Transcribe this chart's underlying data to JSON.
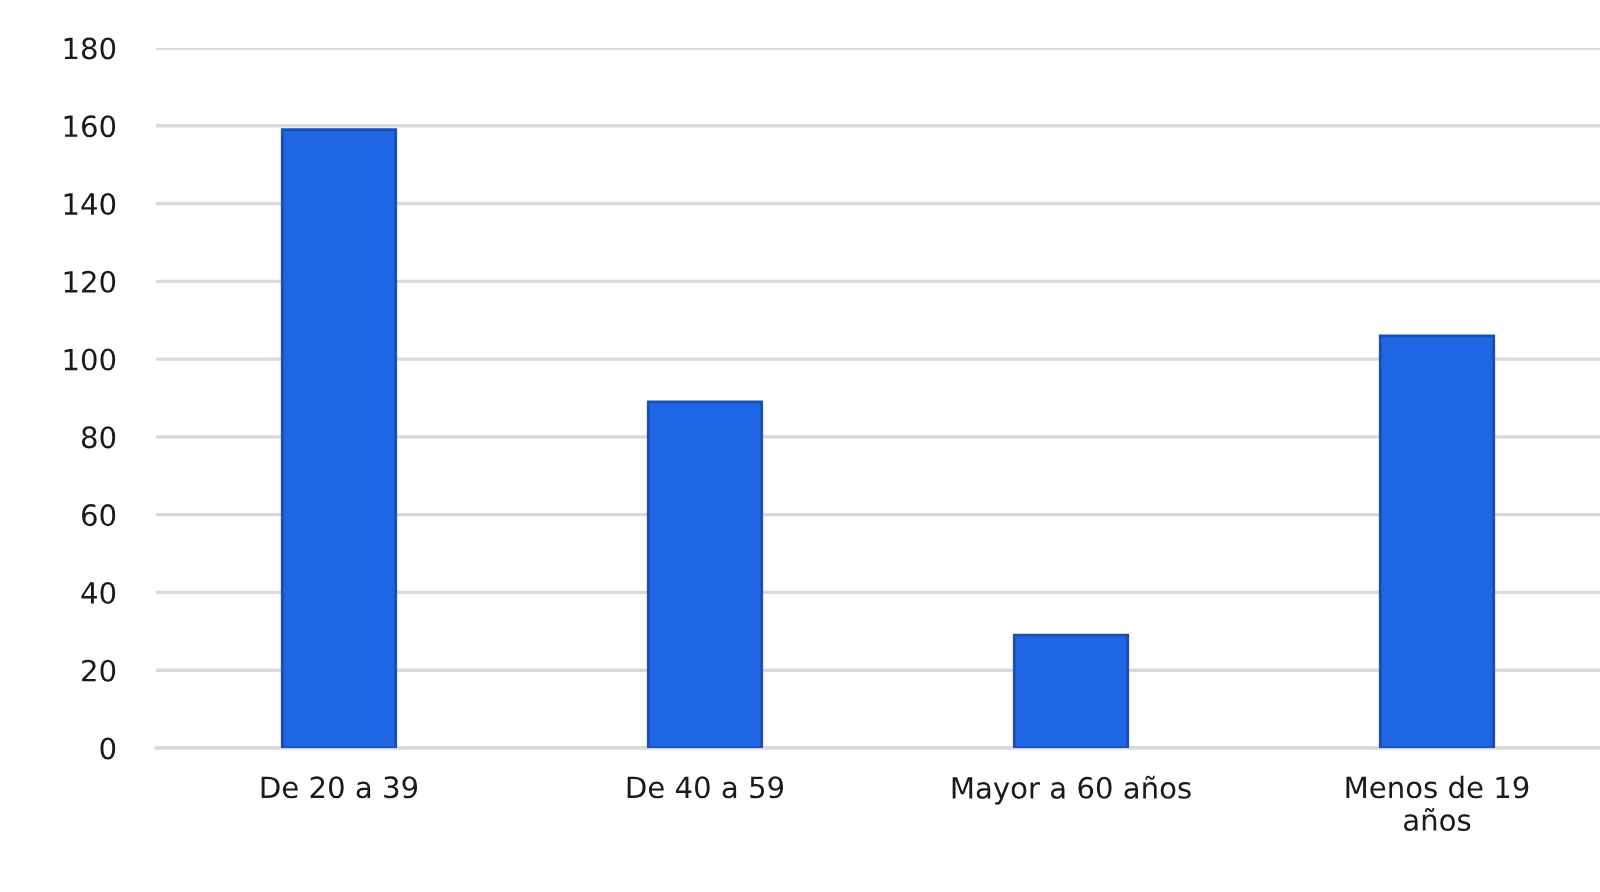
{
  "chart_data": {
    "type": "bar",
    "categories": [
      "De 20 a 39",
      "De 40 a 59",
      "Mayor a 60 años",
      "Menos de 19\naños"
    ],
    "values": [
      159,
      89,
      29,
      106
    ],
    "color": "#1f66e5",
    "ylim": [
      0,
      180
    ],
    "yticks": [
      0,
      20,
      40,
      60,
      80,
      100,
      120,
      140,
      160,
      180
    ],
    "grid": "y",
    "legend": false
  }
}
